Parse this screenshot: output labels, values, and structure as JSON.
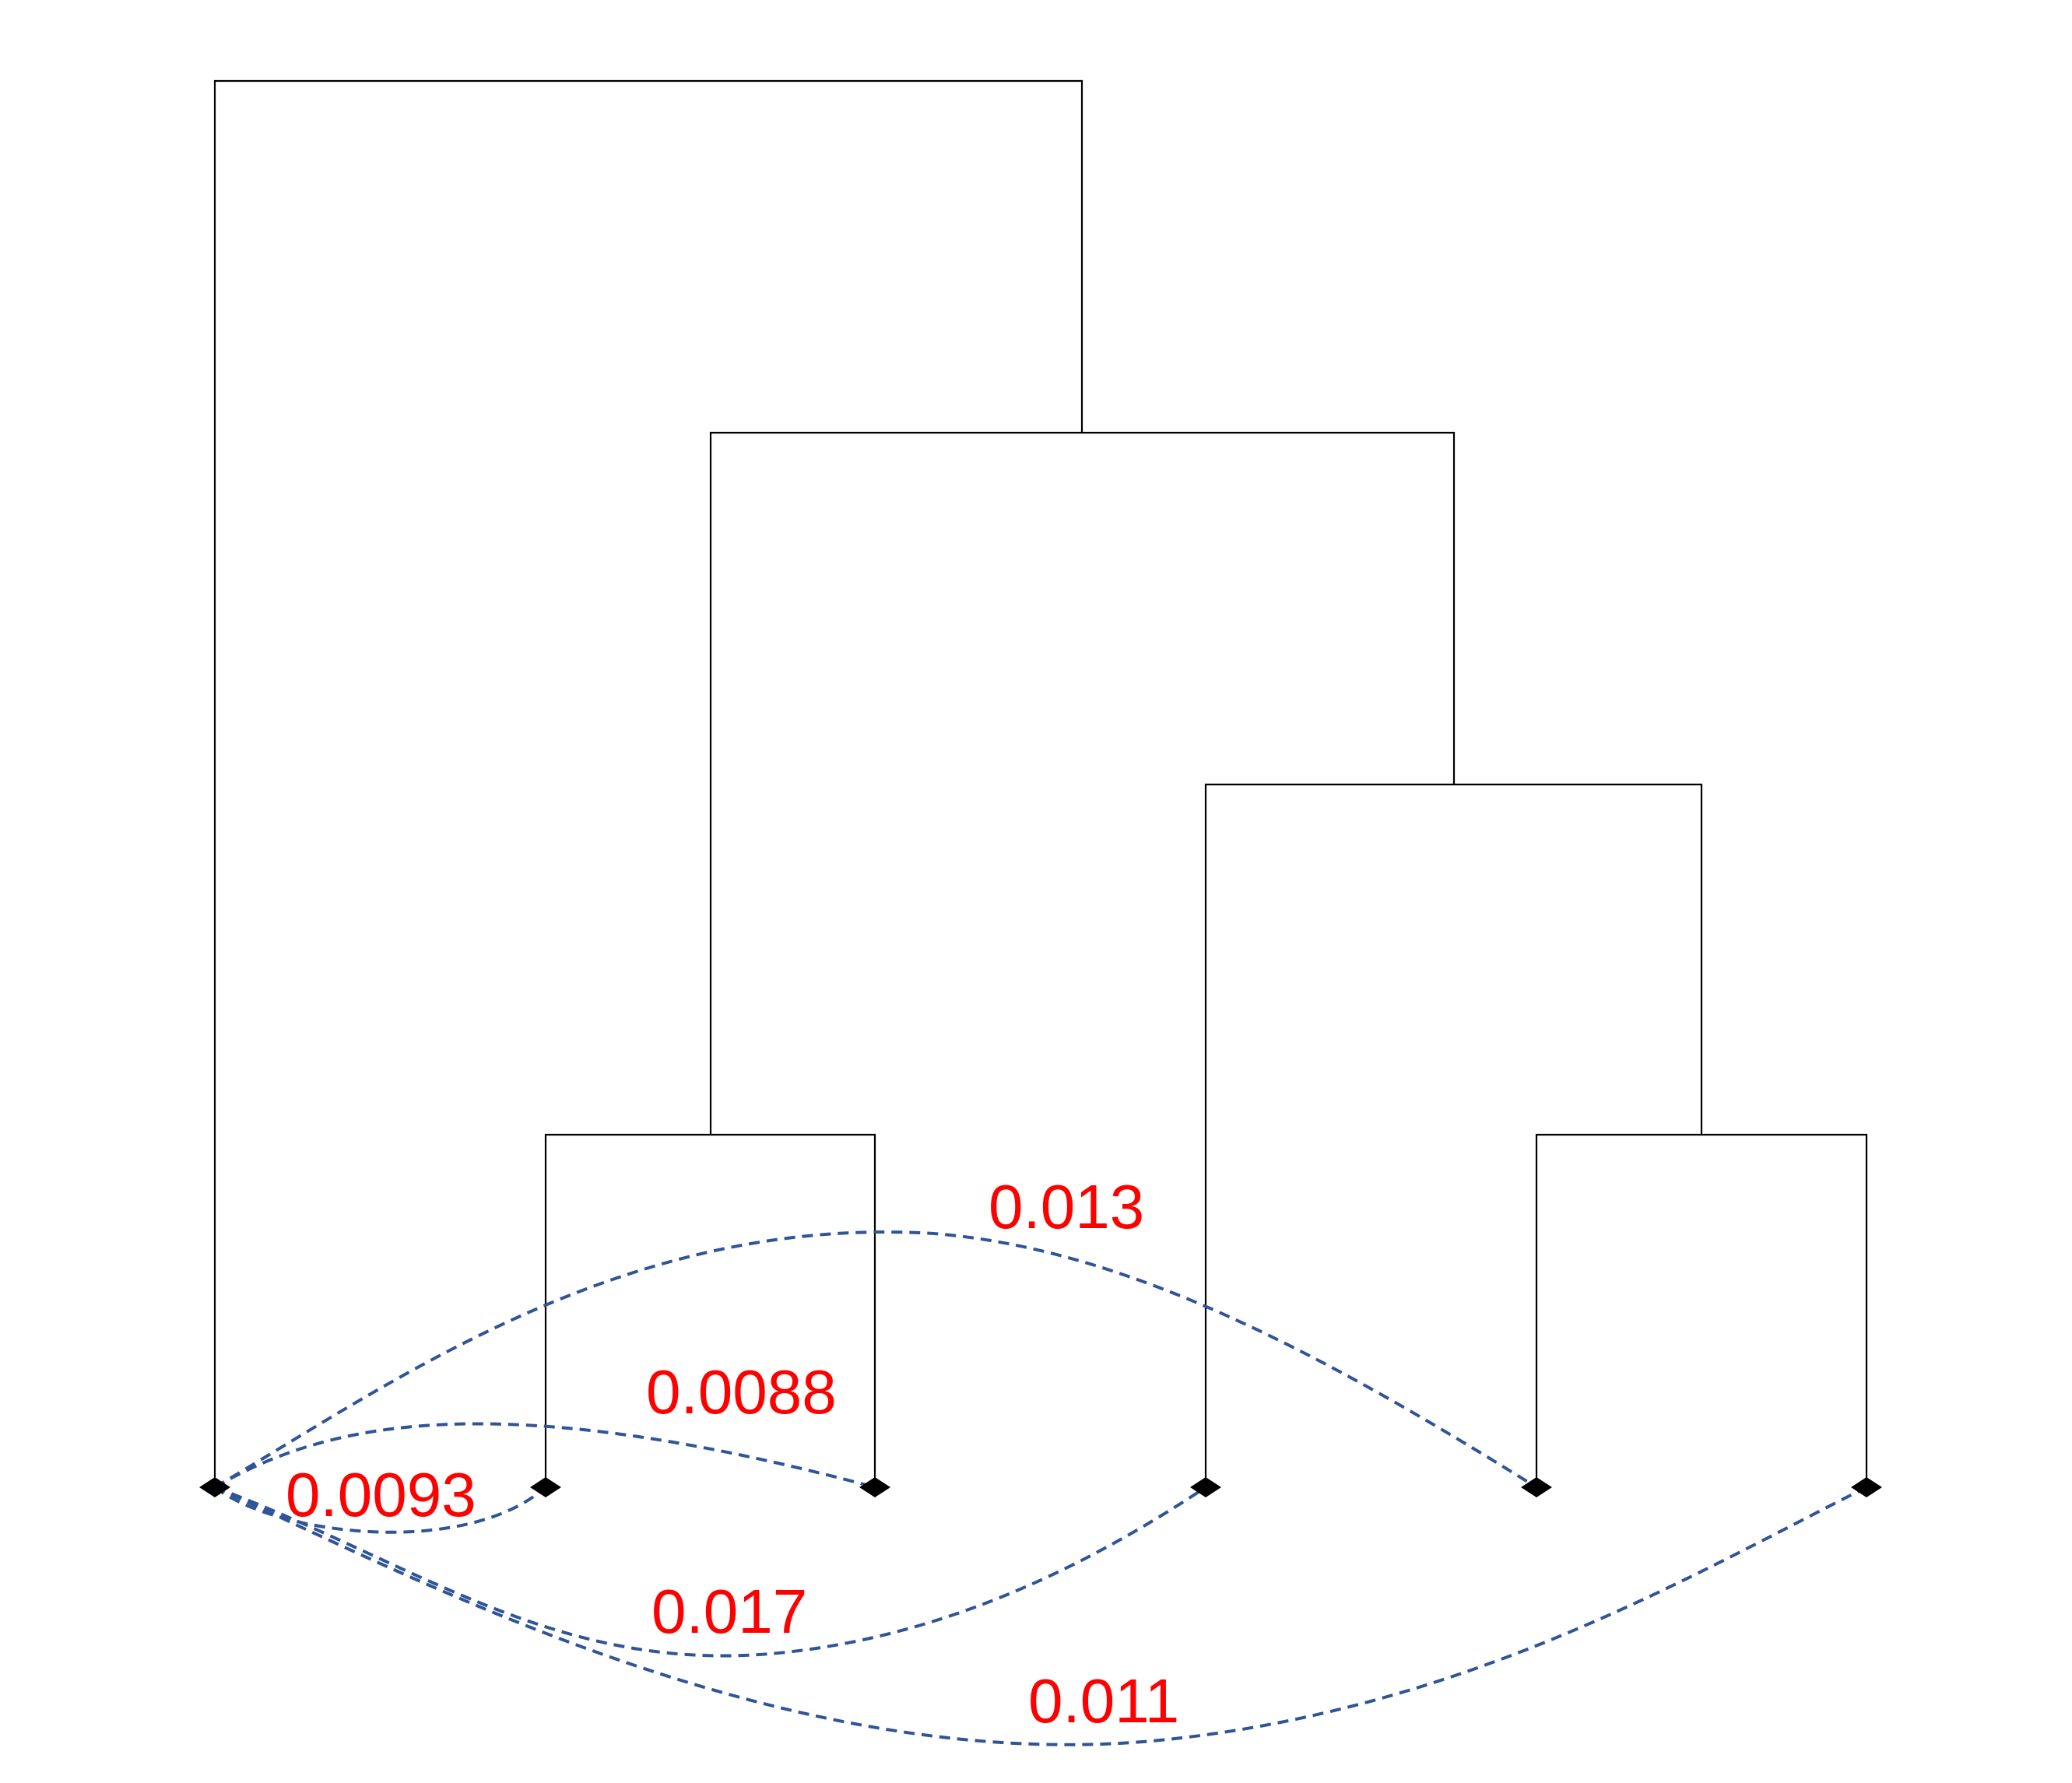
{
  "colors": {
    "tree": "#000000",
    "arc": "#2f5597",
    "label": "#ff0000",
    "background": "#ffffff"
  },
  "tree": {
    "leaves": [
      "leaf-1",
      "leaf-2",
      "leaf-3",
      "leaf-4",
      "leaf-5",
      "leaf-6"
    ],
    "merges": [
      {
        "children": [
          "leaf-2",
          "leaf-3"
        ]
      },
      {
        "children": [
          "leaf-5",
          "leaf-6"
        ]
      },
      {
        "children": [
          "leaf-4",
          "leaf-5-6"
        ]
      },
      {
        "children": [
          "leaf-2-3",
          "leaf-4-5-6"
        ]
      },
      {
        "children": [
          "leaf-1",
          "rest"
        ]
      }
    ]
  },
  "connections": [
    {
      "from": "leaf-1",
      "to": "leaf-2",
      "label": "0.0093"
    },
    {
      "from": "leaf-1",
      "to": "leaf-3",
      "label": "0.0088"
    },
    {
      "from": "leaf-1",
      "to": "leaf-5",
      "label": "0.013"
    },
    {
      "from": "leaf-1",
      "to": "leaf-4",
      "label": "0.017"
    },
    {
      "from": "leaf-1",
      "to": "leaf-6",
      "label": "0.011"
    }
  ]
}
